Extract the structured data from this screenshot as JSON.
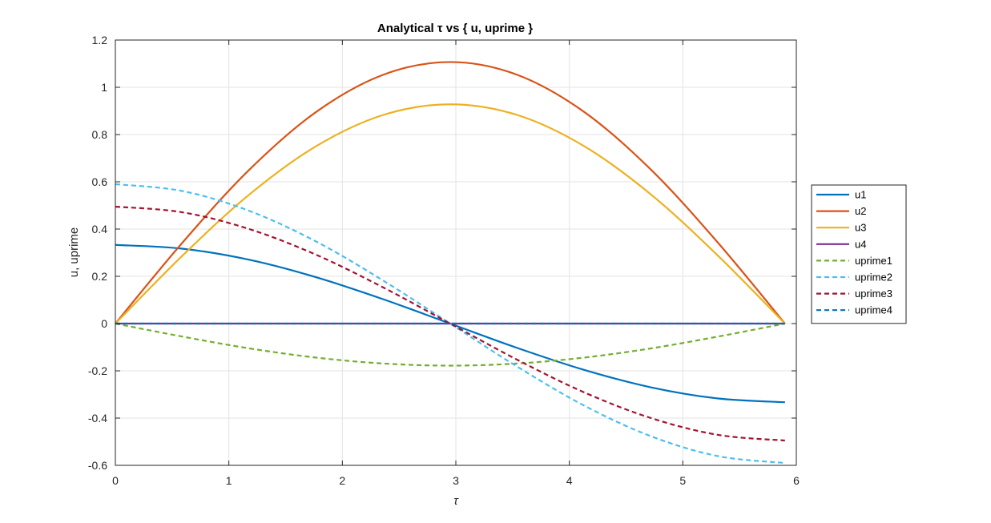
{
  "chart_data": {
    "type": "line",
    "title": "Analytical τ vs { u, uprime }",
    "xlabel": "τ",
    "ylabel": "u, uprime",
    "xlim": [
      0,
      6
    ],
    "ylim": [
      -0.6,
      1.2
    ],
    "xticks": [
      0,
      1,
      2,
      3,
      4,
      5,
      6
    ],
    "xtick_labels": [
      "0",
      "1",
      "2",
      "3",
      "4",
      "5",
      "6"
    ],
    "yticks": [
      -0.6,
      -0.4,
      -0.2,
      0,
      0.2,
      0.4,
      0.6,
      0.8,
      1,
      1.2
    ],
    "ytick_labels": [
      "-0.6",
      "-0.4",
      "-0.2",
      "0",
      "0.2",
      "0.4",
      "0.6",
      "0.8",
      "1",
      "1.2"
    ],
    "grid": true,
    "legend_position": "outside-right",
    "x": [
      0,
      0.59,
      1.18,
      1.77,
      2.36,
      2.95,
      3.54,
      4.13,
      4.72,
      5.31,
      5.9
    ],
    "series": [
      {
        "name": "u1",
        "color": "#0072BD",
        "dash": "solid",
        "values": [
          0.333,
          0.317,
          0.27,
          0.196,
          0.103,
          0.0,
          -0.103,
          -0.196,
          -0.27,
          -0.317,
          -0.333
        ]
      },
      {
        "name": "u2",
        "color": "#D95319",
        "dash": "solid",
        "values": [
          0,
          0.342,
          0.651,
          0.896,
          1.053,
          1.107,
          1.053,
          0.896,
          0.651,
          0.342,
          0
        ]
      },
      {
        "name": "u3",
        "color": "#EDB120",
        "dash": "solid",
        "values": [
          0,
          0.287,
          0.546,
          0.751,
          0.883,
          0.928,
          0.883,
          0.751,
          0.546,
          0.287,
          0
        ]
      },
      {
        "name": "u4",
        "color": "#7E2F8E",
        "dash": "solid",
        "values": [
          0,
          0,
          0,
          0,
          0,
          0,
          0,
          0,
          0,
          0,
          0
        ]
      },
      {
        "name": "uprime1",
        "color": "#77AC30",
        "dash": "dashed",
        "values": [
          0,
          -0.055,
          -0.105,
          -0.144,
          -0.169,
          -0.178,
          -0.169,
          -0.144,
          -0.105,
          -0.055,
          0
        ]
      },
      {
        "name": "uprime2",
        "color": "#4DBEEE",
        "dash": "dashed",
        "values": [
          0.59,
          0.561,
          0.477,
          0.347,
          0.182,
          0.0,
          -0.182,
          -0.347,
          -0.477,
          -0.561,
          -0.59
        ]
      },
      {
        "name": "uprime3",
        "color": "#A2142F",
        "dash": "dashed",
        "values": [
          0.495,
          0.471,
          0.4,
          0.291,
          0.153,
          0.0,
          -0.153,
          -0.291,
          -0.4,
          -0.471,
          -0.495
        ]
      },
      {
        "name": "uprime4",
        "color": "#0072BD",
        "dash": "dashed",
        "values": [
          0,
          0,
          0,
          0,
          0,
          0,
          0,
          0,
          0,
          0,
          0
        ]
      }
    ]
  }
}
